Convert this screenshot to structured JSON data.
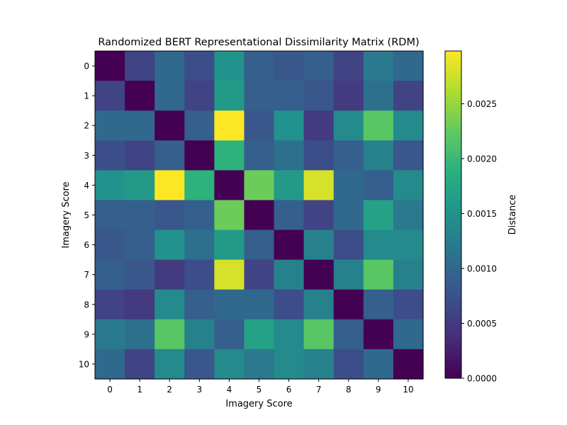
{
  "chart_data": {
    "type": "heatmap",
    "title": "Randomized BERT Representational Dissimilarity Matrix (RDM)",
    "xlabel": "Imagery Score",
    "ylabel": "Imagery Score",
    "x_categories": [
      "0",
      "1",
      "2",
      "3",
      "4",
      "5",
      "6",
      "7",
      "8",
      "9",
      "10"
    ],
    "y_categories": [
      "0",
      "1",
      "2",
      "3",
      "4",
      "5",
      "6",
      "7",
      "8",
      "9",
      "10"
    ],
    "colormap": "viridis",
    "vmin": 0.0,
    "vmax": 0.00298,
    "colorbar_label": "Distance",
    "colorbar_ticks": [
      "0.0000",
      "0.0005",
      "0.0010",
      "0.0015",
      "0.0020",
      "0.0025"
    ],
    "values": [
      [
        0.0,
        0.0006,
        0.001,
        0.0007,
        0.0015,
        0.0009,
        0.0008,
        0.0009,
        0.0006,
        0.0012,
        0.001
      ],
      [
        0.0006,
        0.0,
        0.001,
        0.0006,
        0.0016,
        0.0009,
        0.0009,
        0.0008,
        0.0005,
        0.0011,
        0.0006
      ],
      [
        0.001,
        0.001,
        0.0,
        0.0009,
        0.003,
        0.0008,
        0.0015,
        0.0005,
        0.0014,
        0.0022,
        0.0014
      ],
      [
        0.0007,
        0.0006,
        0.0009,
        0.0,
        0.0019,
        0.0009,
        0.0011,
        0.0007,
        0.0009,
        0.0013,
        0.0008
      ],
      [
        0.0015,
        0.0016,
        0.003,
        0.0019,
        0.0,
        0.0023,
        0.0016,
        0.0028,
        0.001,
        0.0009,
        0.0014
      ],
      [
        0.0009,
        0.0009,
        0.0008,
        0.0009,
        0.0023,
        0.0,
        0.0009,
        0.0006,
        0.001,
        0.0017,
        0.0012
      ],
      [
        0.0008,
        0.0009,
        0.0015,
        0.0011,
        0.0016,
        0.0009,
        0.0,
        0.0013,
        0.0007,
        0.0014,
        0.0014
      ],
      [
        0.0009,
        0.0008,
        0.0005,
        0.0007,
        0.0028,
        0.0006,
        0.0013,
        0.0,
        0.0013,
        0.0022,
        0.0013
      ],
      [
        0.0006,
        0.0005,
        0.0014,
        0.0009,
        0.001,
        0.001,
        0.0007,
        0.0013,
        0.0,
        0.0009,
        0.0007
      ],
      [
        0.0012,
        0.0011,
        0.0022,
        0.0013,
        0.0009,
        0.0017,
        0.0014,
        0.0022,
        0.0009,
        0.0,
        0.001
      ],
      [
        0.001,
        0.0006,
        0.0014,
        0.0008,
        0.0014,
        0.0012,
        0.0014,
        0.0013,
        0.0007,
        0.001,
        0.0
      ]
    ]
  }
}
